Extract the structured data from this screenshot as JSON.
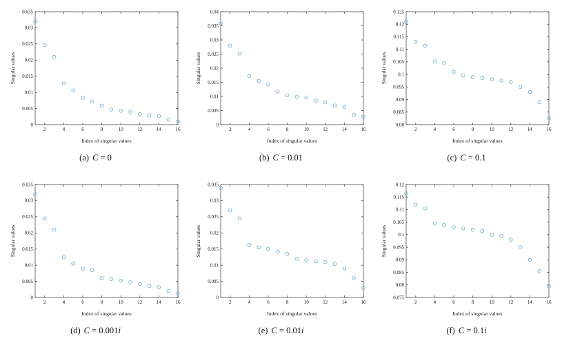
{
  "figure": {
    "background": "#ffffff",
    "marker_color": "#74add1",
    "axis_color": "#333333",
    "text_color": "#111111"
  },
  "chart_data": [
    {
      "id": "a",
      "type": "scatter",
      "caption": {
        "tag": "(a)",
        "var": "C",
        "eq": " = 0",
        "suffix": ""
      },
      "xlabel": "Index of singular values",
      "ylabel": "Singular values",
      "xlim": [
        1,
        16
      ],
      "ylim": [
        0,
        0.035
      ],
      "xticks": [
        2,
        4,
        6,
        8,
        10,
        12,
        14,
        16
      ],
      "yticks": [
        0,
        0.005,
        0.01,
        0.015,
        0.02,
        0.025,
        0.03,
        0.035
      ],
      "ytick_labels": [
        "0",
        "0.005",
        "0.01",
        "0.015",
        "0.02",
        "0.025",
        "0.03",
        "0.035"
      ],
      "x": [
        1,
        2,
        3,
        4,
        5,
        6,
        7,
        8,
        9,
        10,
        11,
        12,
        13,
        14,
        15,
        16
      ],
      "y": [
        0.032,
        0.0247,
        0.021,
        0.0127,
        0.0106,
        0.0083,
        0.0072,
        0.0059,
        0.0047,
        0.0043,
        0.0039,
        0.0033,
        0.0029,
        0.0026,
        0.0015,
        0.001
      ],
      "grid": false,
      "legend": null
    },
    {
      "id": "b",
      "type": "scatter",
      "caption": {
        "tag": "(b)",
        "var": "C",
        "eq": " = 0.01",
        "suffix": ""
      },
      "xlabel": "Index of singular values",
      "ylabel": "Singular values",
      "xlim": [
        1,
        16
      ],
      "ylim": [
        0,
        0.04
      ],
      "xticks": [
        2,
        4,
        6,
        8,
        10,
        12,
        14,
        16
      ],
      "yticks": [
        0,
        0.005,
        0.01,
        0.015,
        0.02,
        0.025,
        0.03,
        0.035,
        0.04
      ],
      "ytick_labels": [
        "0",
        "0.005",
        "0.01",
        "0.015",
        "0.02",
        "0.025",
        "0.03",
        "0.035",
        "0.04"
      ],
      "x": [
        1,
        2,
        3,
        4,
        5,
        6,
        7,
        8,
        9,
        10,
        11,
        12,
        13,
        14,
        15,
        16
      ],
      "y": [
        0.0358,
        0.028,
        0.0252,
        0.0172,
        0.0155,
        0.0142,
        0.0118,
        0.0104,
        0.0099,
        0.0096,
        0.0085,
        0.0079,
        0.0068,
        0.0063,
        0.0035,
        0.0028
      ],
      "grid": false,
      "legend": null
    },
    {
      "id": "c",
      "type": "scatter",
      "caption": {
        "tag": "(c)",
        "var": "C",
        "eq": " = 0.1",
        "suffix": ""
      },
      "xlabel": "Index of singular values",
      "ylabel": "Singular values",
      "xlim": [
        1,
        16
      ],
      "ylim": [
        0.08,
        0.125
      ],
      "xticks": [
        2,
        4,
        6,
        8,
        10,
        12,
        14,
        16
      ],
      "yticks": [
        0.08,
        0.085,
        0.09,
        0.095,
        0.1,
        0.105,
        0.11,
        0.115,
        0.12,
        0.125
      ],
      "ytick_labels": [
        "0.08",
        "0.085",
        "0.09",
        "0.095",
        "0.1",
        "0.105",
        "0.11",
        "0.115",
        "0.12",
        "0.125"
      ],
      "x": [
        1,
        2,
        3,
        4,
        5,
        6,
        7,
        8,
        9,
        10,
        11,
        12,
        13,
        14,
        15,
        16
      ],
      "y": [
        0.121,
        0.113,
        0.1115,
        0.1052,
        0.1044,
        0.101,
        0.0996,
        0.099,
        0.0986,
        0.0981,
        0.0976,
        0.097,
        0.095,
        0.093,
        0.089,
        0.0825
      ],
      "grid": false,
      "legend": null
    },
    {
      "id": "d",
      "type": "scatter",
      "caption": {
        "tag": "(d)",
        "var": "C",
        "eq": " = 0.001",
        "suffix": "i"
      },
      "xlabel": "Index of singular values",
      "ylabel": "Singular values",
      "xlim": [
        1,
        16
      ],
      "ylim": [
        0,
        0.035
      ],
      "xticks": [
        2,
        4,
        6,
        8,
        10,
        12,
        14,
        16
      ],
      "yticks": [
        0,
        0.005,
        0.01,
        0.015,
        0.02,
        0.025,
        0.03,
        0.035
      ],
      "ytick_labels": [
        "0",
        "0.005",
        "0.01",
        "0.015",
        "0.02",
        "0.025",
        "0.03",
        "0.035"
      ],
      "x": [
        1,
        2,
        3,
        4,
        5,
        6,
        7,
        8,
        9,
        10,
        11,
        12,
        13,
        14,
        15,
        16
      ],
      "y": [
        0.032,
        0.0245,
        0.021,
        0.0125,
        0.0105,
        0.009,
        0.0085,
        0.006,
        0.0057,
        0.0052,
        0.0047,
        0.0042,
        0.0036,
        0.0032,
        0.002,
        0.0013
      ],
      "grid": false,
      "legend": null
    },
    {
      "id": "e",
      "type": "scatter",
      "caption": {
        "tag": "(e)",
        "var": "C",
        "eq": " = 0.01",
        "suffix": "i"
      },
      "xlabel": "Index of singular values",
      "ylabel": "Singular values",
      "xlim": [
        1,
        16
      ],
      "ylim": [
        0,
        0.035
      ],
      "xticks": [
        2,
        4,
        6,
        8,
        10,
        12,
        14,
        16
      ],
      "yticks": [
        0,
        0.005,
        0.01,
        0.015,
        0.02,
        0.025,
        0.03,
        0.035
      ],
      "ytick_labels": [
        "0",
        "0.005",
        "0.01",
        "0.015",
        "0.02",
        "0.025",
        "0.03",
        "0.035"
      ],
      "x": [
        1,
        2,
        3,
        4,
        5,
        6,
        7,
        8,
        9,
        10,
        11,
        12,
        13,
        14,
        15,
        16
      ],
      "y": [
        0.034,
        0.027,
        0.0245,
        0.0163,
        0.0155,
        0.015,
        0.0142,
        0.0135,
        0.012,
        0.0115,
        0.0112,
        0.011,
        0.0104,
        0.009,
        0.006,
        0.003
      ],
      "grid": false,
      "legend": null
    },
    {
      "id": "f",
      "type": "scatter",
      "caption": {
        "tag": "(f)",
        "var": "C",
        "eq": " = 0.1",
        "suffix": "i"
      },
      "xlabel": "Index of singular values",
      "ylabel": "Singular values",
      "xlim": [
        1,
        16
      ],
      "ylim": [
        0.075,
        0.12
      ],
      "xticks": [
        2,
        4,
        6,
        8,
        10,
        12,
        14,
        16
      ],
      "yticks": [
        0.075,
        0.08,
        0.085,
        0.09,
        0.095,
        0.1,
        0.105,
        0.11,
        0.115,
        0.12
      ],
      "ytick_labels": [
        "0.075",
        "0.08",
        "0.085",
        "0.09",
        "0.095",
        "0.1",
        "0.105",
        "0.11",
        "0.115",
        "0.12"
      ],
      "x": [
        1,
        2,
        3,
        4,
        5,
        6,
        7,
        8,
        9,
        10,
        11,
        12,
        13,
        14,
        15,
        16
      ],
      "y": [
        0.1165,
        0.112,
        0.1105,
        0.1045,
        0.104,
        0.103,
        0.1025,
        0.102,
        0.1015,
        0.1,
        0.0995,
        0.098,
        0.095,
        0.09,
        0.0855,
        0.0795
      ],
      "grid": false,
      "legend": null
    }
  ]
}
